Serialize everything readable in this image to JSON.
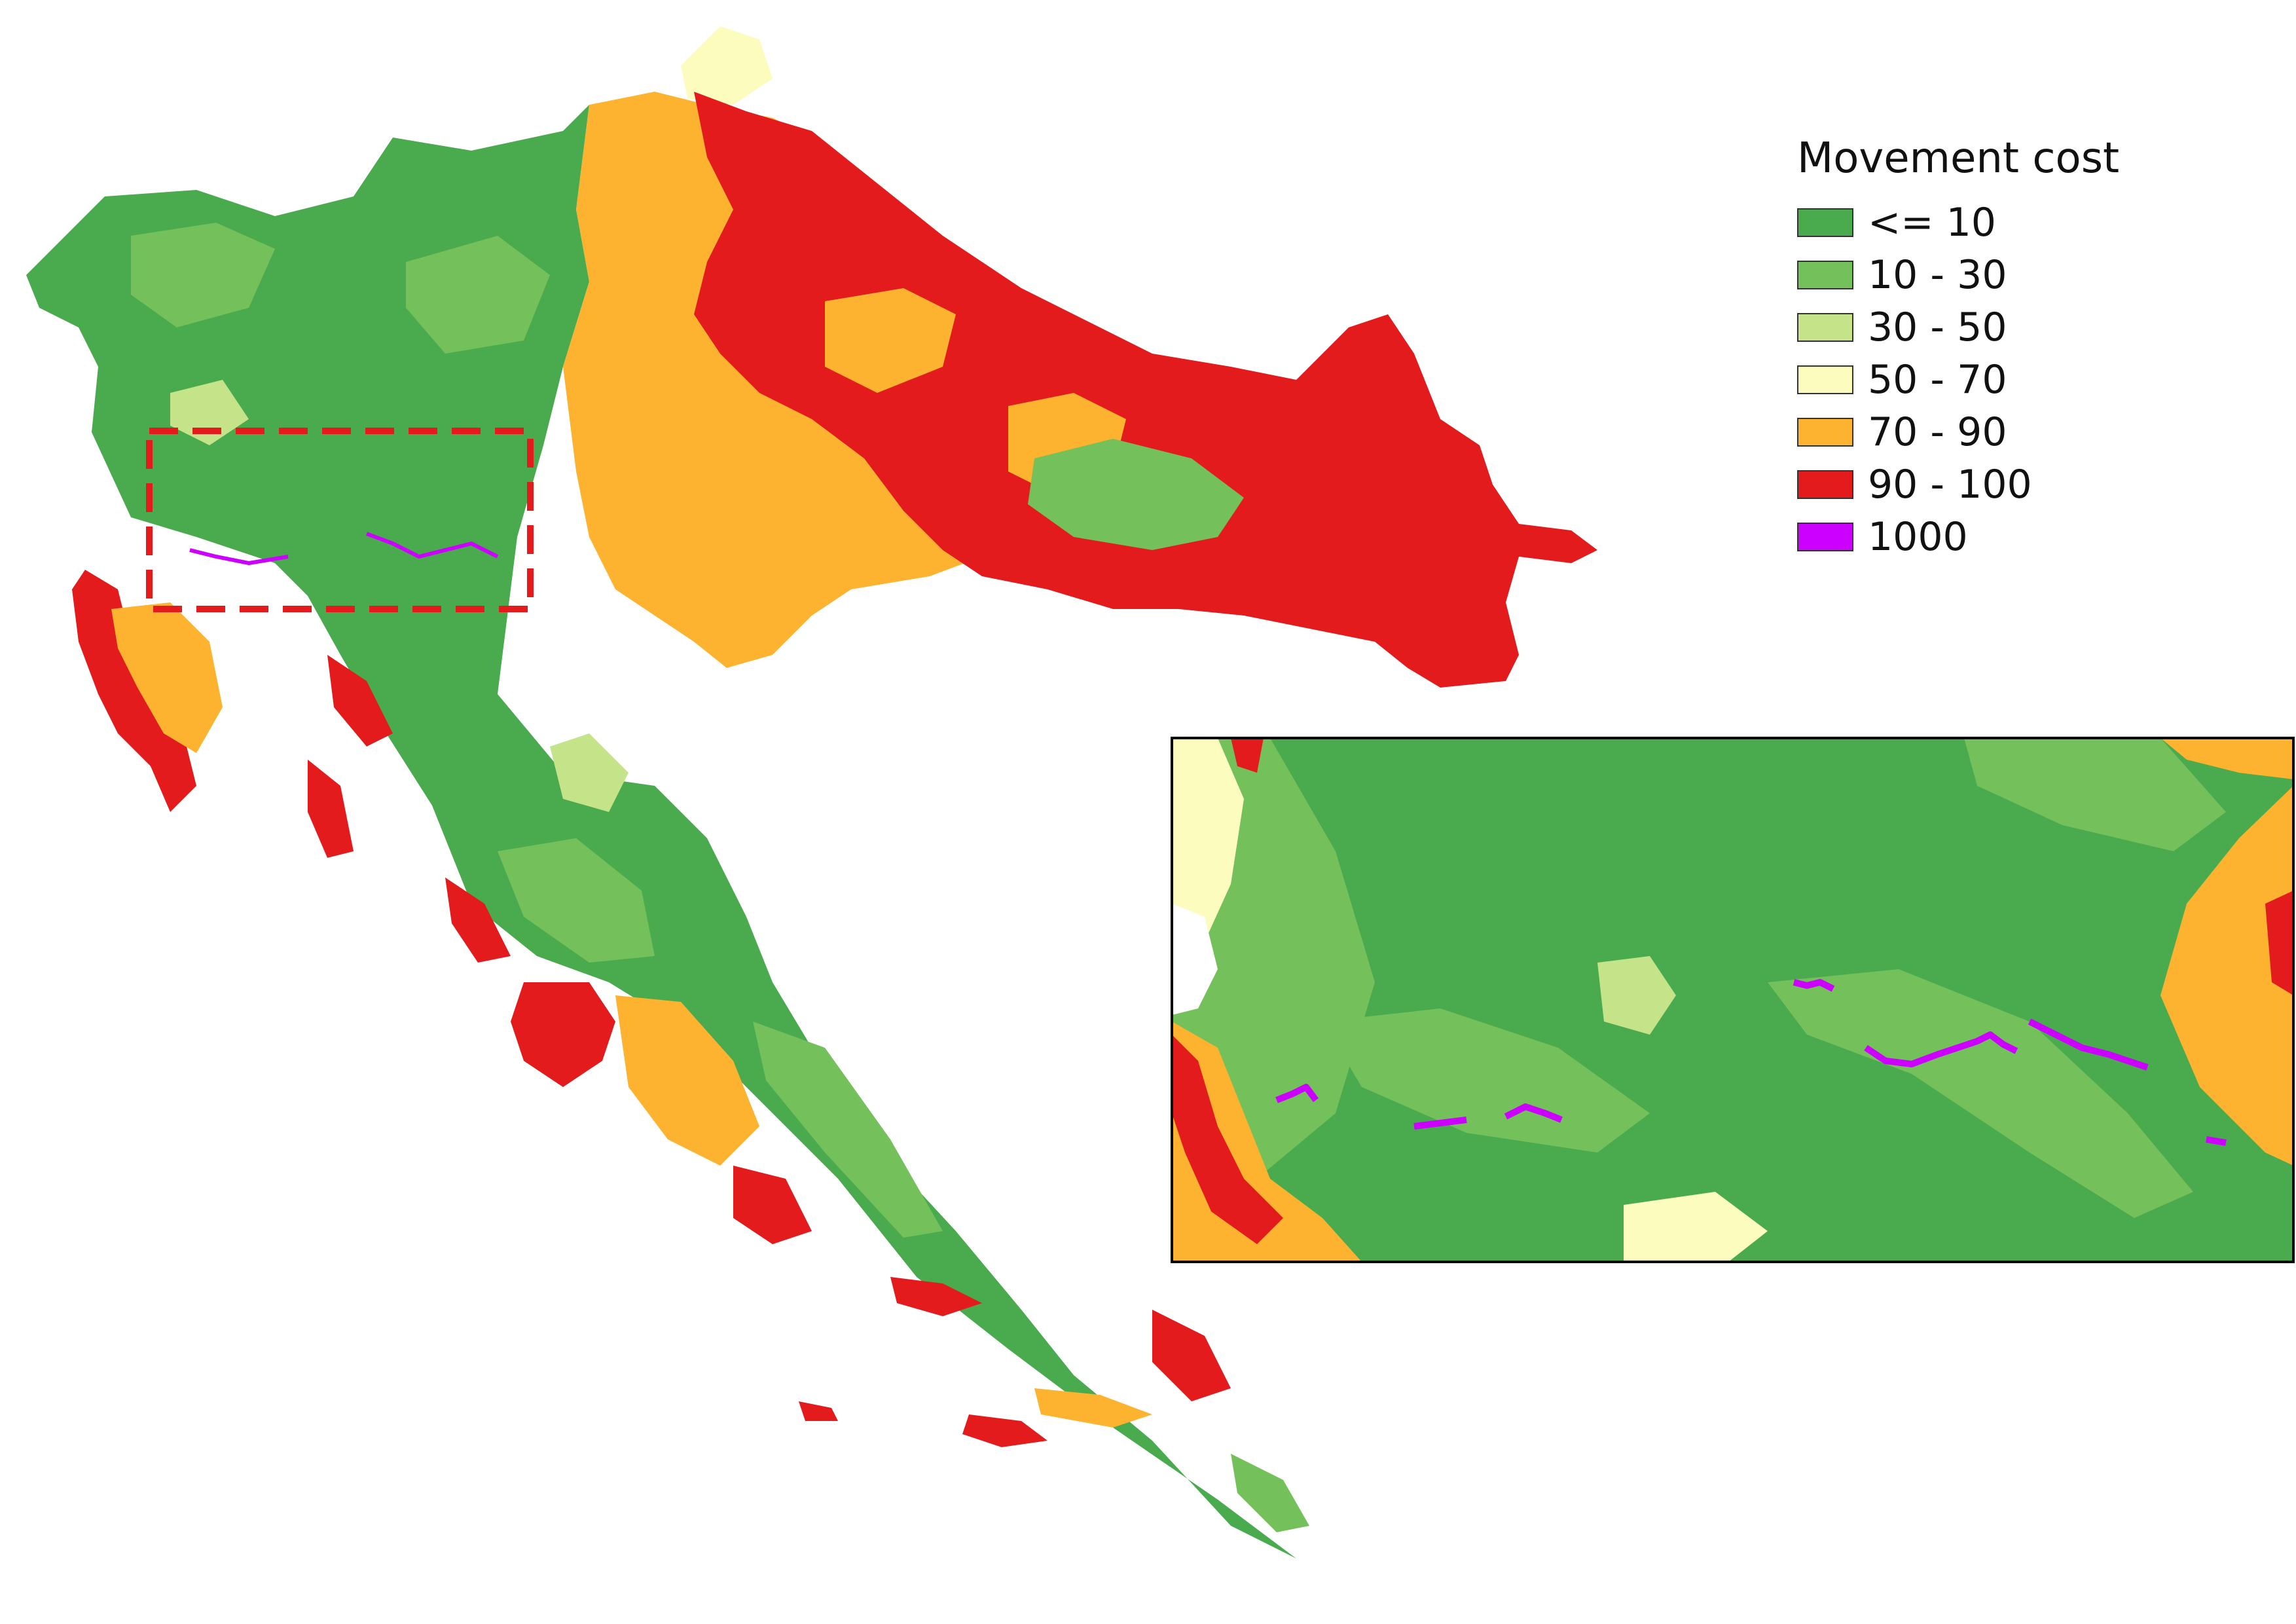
{
  "legend": {
    "title": "Movement cost",
    "items": [
      {
        "label": "<= 10",
        "color": "#4aaa4e"
      },
      {
        "label": "10 - 30",
        "color": "#74c05a"
      },
      {
        "label": "30 - 50",
        "color": "#c5e389"
      },
      {
        "label": "50 - 70",
        "color": "#fdfcbf"
      },
      {
        "label": "70 - 90",
        "color": "#fdb32f"
      },
      {
        "label": "90 - 100",
        "color": "#e31b1c"
      },
      {
        "label": "1000",
        "color": "#cc00ff"
      }
    ]
  },
  "inset": {
    "frame_color": "#000000",
    "highlight_color": "#e31b1c"
  }
}
